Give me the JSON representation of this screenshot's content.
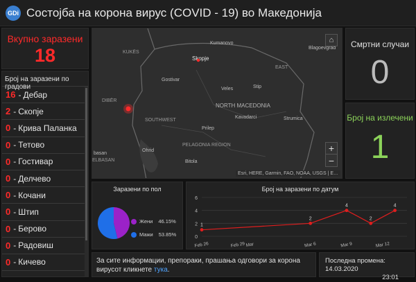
{
  "header": {
    "logo_text": "GDi",
    "title": "Состојба на корона вирус (COVID - 19) во Македонија"
  },
  "total": {
    "label": "Вкупно заразени",
    "value": "18"
  },
  "cities": {
    "header": "Број на заразени по градови",
    "items": [
      {
        "count": "16",
        "name": "Дебар"
      },
      {
        "count": "2",
        "name": "Скопје"
      },
      {
        "count": "0",
        "name": "Крива Паланка"
      },
      {
        "count": "0",
        "name": "Тетово"
      },
      {
        "count": "0",
        "name": "Гостивар"
      },
      {
        "count": "0",
        "name": "Делчево"
      },
      {
        "count": "0",
        "name": "Кочани"
      },
      {
        "count": "0",
        "name": "Штип"
      },
      {
        "count": "0",
        "name": "Берово"
      },
      {
        "count": "0",
        "name": "Радовиш"
      },
      {
        "count": "0",
        "name": "Кичево"
      }
    ]
  },
  "map": {
    "labels": [
      "KUKËS",
      "Skopje",
      "Kumanovo",
      "Blagoevgrad",
      "EAST",
      "Gostivar",
      "Veles",
      "Stip",
      "DIBËR",
      "NORTH MACEDONIA",
      "Kavadarci",
      "Strumica",
      "SOUTHWEST",
      "Prilep",
      "PELAGONIA REGION",
      "Ohrid",
      "basan",
      "ELBASAN",
      "Bitola"
    ],
    "attribution": "Esri, HERE, Garmin, FAO, NOAA, USGS | E…",
    "home_icon": "home-icon",
    "zoom_in": "+",
    "zoom_out": "−"
  },
  "deaths": {
    "label": "Смртни случаи",
    "value": "0"
  },
  "recovered": {
    "label": "Број на излечени",
    "value": "1"
  },
  "gender": {
    "title": "Заразени по пол",
    "items": [
      {
        "label": "Жени",
        "percent": "46.15%",
        "value": 46.15,
        "color": "#9b22c8"
      },
      {
        "label": "Мажи",
        "percent": "53.85%",
        "value": 53.85,
        "color": "#1f6fe8"
      }
    ]
  },
  "chart_data": {
    "type": "line",
    "title": "Број на заразени по датум",
    "x": [
      "Feb 26",
      "Mar 6",
      "Mar 9",
      "Mar 11",
      "Mar 13"
    ],
    "y": [
      1,
      2,
      4,
      2,
      4
    ],
    "data_labels": [
      "1",
      "2",
      "4",
      "2",
      "4"
    ],
    "xticks": [
      "Feb 26",
      "Feb 29",
      "Mar",
      "Mar 6",
      "Mar 9",
      "Mar 12"
    ],
    "yticks": [
      "0",
      "2",
      "4",
      "6"
    ],
    "ylim": [
      0,
      6
    ],
    "color": "#e01e1e",
    "grid": true
  },
  "info": {
    "text": "За сите информации, препораки, прашања одговори за корона вирусот кликнете",
    "link": "тука",
    "end": "."
  },
  "updated": {
    "label": "Последна промена:",
    "date": "14.03.2020",
    "time": "23:01"
  }
}
